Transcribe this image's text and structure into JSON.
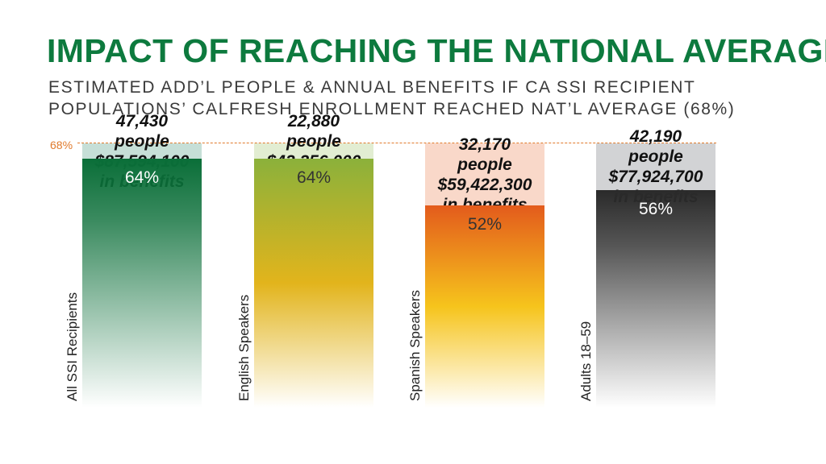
{
  "title": "IMPACT OF REACHING THE NATIONAL AVERAGE",
  "subtitle_line1": "ESTIMATED ADD’L PEOPLE & ANNUAL BENEFITS IF CA SSI RECIPIENT",
  "subtitle_line2": "POPULATIONS’ CALFRESH ENROLLMENT REACHED NAT’L AVERAGE (68%)",
  "reference_label": "68%",
  "colors": {
    "title": "#0d7a3e",
    "reference": "#e07a2c"
  },
  "chart_data": {
    "type": "bar",
    "categories": [
      "All SSI Recipients",
      "English Speakers",
      "Spanish Speakers",
      "Adults 18–59"
    ],
    "values": [
      64,
      64,
      52,
      56
    ],
    "value_labels": [
      "64%",
      "64%",
      "52%",
      "56%"
    ],
    "reference_value": 68,
    "gap_people": [
      "47,430",
      "22,880",
      "32,170",
      "42,190"
    ],
    "people_unit": "people",
    "gap_benefits": [
      "$87,594,100",
      "$42,256,000",
      "$59,422,300",
      "$77,924,700"
    ],
    "benefits_unit": "in benefits",
    "bar_colors": [
      {
        "fill_top": "#0a6e38",
        "gap": "#c6dfd7",
        "label": "#ffffff"
      },
      {
        "fill_top": "#8bb13b",
        "fill_mid": "#e2b41c",
        "gap": "#e2edd2",
        "label": "#333333"
      },
      {
        "fill_top": "#e35b1c",
        "fill_mid": "#f6c41c",
        "gap": "#f9d8c9",
        "label": "#333333"
      },
      {
        "fill_top": "#2a2a2a",
        "gap": "#d2d3d5",
        "label": "#ffffff"
      }
    ]
  }
}
